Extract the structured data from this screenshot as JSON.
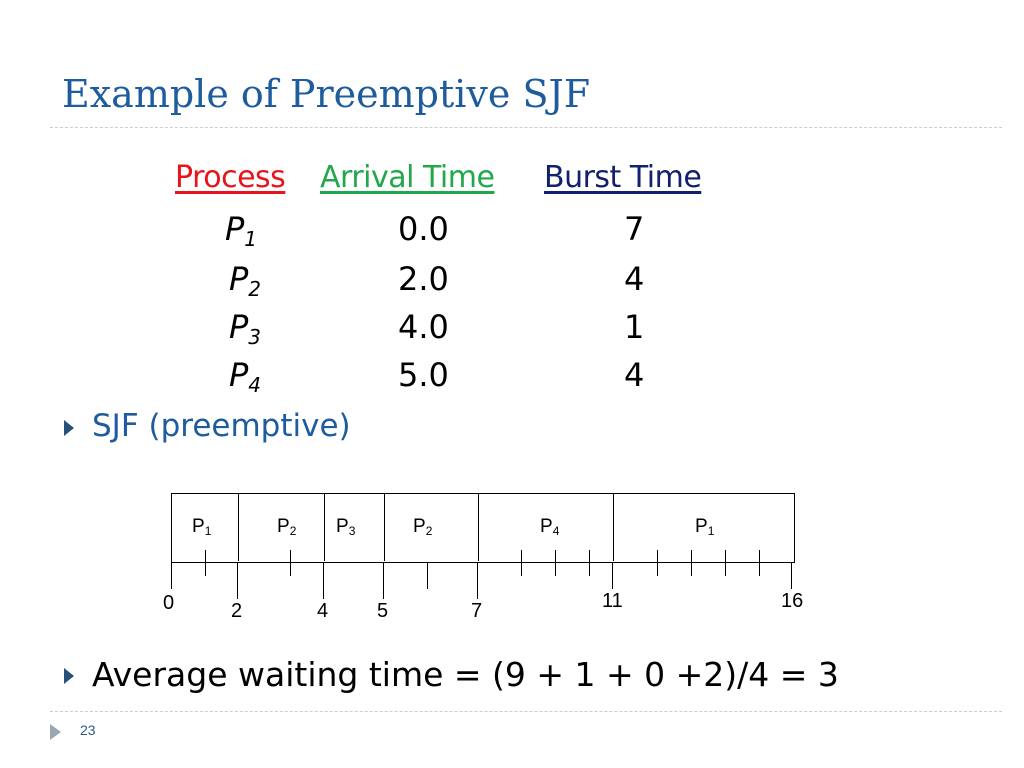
{
  "slide": {
    "title": "Example of Preemptive SJF",
    "page_number": "23"
  },
  "table": {
    "headers": [
      {
        "label": "Process",
        "color": "#E8141B"
      },
      {
        "label": "Arrival Time",
        "color": "#22A84A"
      },
      {
        "label": "Burst Time",
        "color": "#13206B"
      }
    ],
    "rows": [
      {
        "process": "P",
        "sub": "1",
        "arrival": "0.0",
        "burst": "7"
      },
      {
        "process": "P",
        "sub": "2",
        "arrival": "2.0",
        "burst": "4"
      },
      {
        "process": "P",
        "sub": "3",
        "arrival": "4.0",
        "burst": "1"
      },
      {
        "process": "P",
        "sub": "4",
        "arrival": "5.0",
        "burst": "4"
      }
    ]
  },
  "bullets": [
    {
      "text": "SJF (preemptive)",
      "color": "#1F5C9E"
    },
    {
      "text": "Average waiting time = (9 + 1 + 0 +2)/4 = 3",
      "color": "#000000"
    }
  ],
  "gantt": {
    "start": 0,
    "end": 16,
    "blocks": [
      {
        "label": "P",
        "sub": "1",
        "start": 0,
        "end": 2
      },
      {
        "label": "P",
        "sub": "2",
        "start": 2,
        "end": 4
      },
      {
        "label": "P",
        "sub": "3",
        "start": 4,
        "end": 5
      },
      {
        "label": "P",
        "sub": "2",
        "start": 5,
        "end": 7
      },
      {
        "label": "P",
        "sub": "4",
        "start": 7,
        "end": 11
      },
      {
        "label": "P",
        "sub": "1",
        "start": 11,
        "end": 16
      }
    ],
    "time_labels": [
      "0",
      "2",
      "4",
      "5",
      "7",
      "11",
      "16"
    ]
  }
}
